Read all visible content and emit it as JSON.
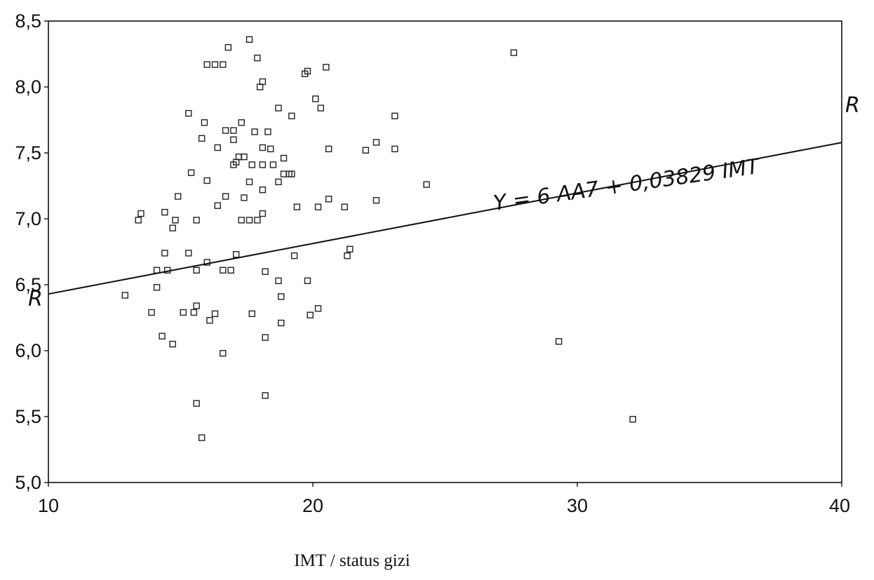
{
  "chart_data": {
    "type": "scatter",
    "title": "",
    "xlabel": "IMT / status gizi",
    "ylabel": "",
    "xlim": [
      10,
      40
    ],
    "ylim": [
      5.0,
      8.5
    ],
    "x_ticks": [
      "10",
      "20",
      "30",
      "40"
    ],
    "y_ticks": [
      "5,0",
      "5,5",
      "6,0",
      "6,5",
      "7,0",
      "7,5",
      "8,0",
      "8,5"
    ],
    "x_tick_values": [
      10,
      20,
      30,
      40
    ],
    "y_tick_values": [
      5.0,
      5.5,
      6.0,
      6.5,
      7.0,
      7.5,
      8.0,
      8.5
    ],
    "grid": false,
    "legend": "none",
    "regression_line": {
      "intercept": 6.0469,
      "slope": 0.03829,
      "x_range": [
        10,
        40
      ],
      "annotation": "Y = 6 AA7 + 0,03829 IMT",
      "end_labels": [
        "R",
        "R"
      ]
    },
    "points": [
      {
        "x": 16.0,
        "y": 8.17
      },
      {
        "x": 16.3,
        "y": 8.17
      },
      {
        "x": 16.6,
        "y": 8.17
      },
      {
        "x": 16.8,
        "y": 8.3
      },
      {
        "x": 17.6,
        "y": 8.36
      },
      {
        "x": 17.9,
        "y": 8.22
      },
      {
        "x": 18.0,
        "y": 8.0
      },
      {
        "x": 18.1,
        "y": 8.04
      },
      {
        "x": 19.7,
        "y": 8.1
      },
      {
        "x": 19.8,
        "y": 8.12
      },
      {
        "x": 20.5,
        "y": 8.15
      },
      {
        "x": 27.6,
        "y": 8.26
      },
      {
        "x": 20.1,
        "y": 7.91
      },
      {
        "x": 20.3,
        "y": 7.84
      },
      {
        "x": 18.7,
        "y": 7.84
      },
      {
        "x": 19.2,
        "y": 7.78
      },
      {
        "x": 15.3,
        "y": 7.8
      },
      {
        "x": 15.9,
        "y": 7.73
      },
      {
        "x": 17.3,
        "y": 7.73
      },
      {
        "x": 23.1,
        "y": 7.78
      },
      {
        "x": 16.7,
        "y": 7.67
      },
      {
        "x": 17.0,
        "y": 7.67
      },
      {
        "x": 17.8,
        "y": 7.66
      },
      {
        "x": 18.3,
        "y": 7.66
      },
      {
        "x": 15.8,
        "y": 7.61
      },
      {
        "x": 17.0,
        "y": 7.6
      },
      {
        "x": 16.4,
        "y": 7.54
      },
      {
        "x": 18.1,
        "y": 7.54
      },
      {
        "x": 18.4,
        "y": 7.53
      },
      {
        "x": 20.6,
        "y": 7.53
      },
      {
        "x": 22.0,
        "y": 7.52
      },
      {
        "x": 22.4,
        "y": 7.58
      },
      {
        "x": 23.1,
        "y": 7.53
      },
      {
        "x": 17.2,
        "y": 7.47
      },
      {
        "x": 17.4,
        "y": 7.47
      },
      {
        "x": 18.9,
        "y": 7.46
      },
      {
        "x": 17.0,
        "y": 7.41
      },
      {
        "x": 17.1,
        "y": 7.43
      },
      {
        "x": 17.7,
        "y": 7.41
      },
      {
        "x": 18.1,
        "y": 7.41
      },
      {
        "x": 18.5,
        "y": 7.41
      },
      {
        "x": 15.4,
        "y": 7.35
      },
      {
        "x": 18.9,
        "y": 7.34
      },
      {
        "x": 19.1,
        "y": 7.34
      },
      {
        "x": 19.2,
        "y": 7.34
      },
      {
        "x": 16.0,
        "y": 7.29
      },
      {
        "x": 17.6,
        "y": 7.28
      },
      {
        "x": 18.7,
        "y": 7.28
      },
      {
        "x": 18.1,
        "y": 7.22
      },
      {
        "x": 24.3,
        "y": 7.26
      },
      {
        "x": 14.9,
        "y": 7.17
      },
      {
        "x": 16.7,
        "y": 7.17
      },
      {
        "x": 17.4,
        "y": 7.16
      },
      {
        "x": 20.6,
        "y": 7.15
      },
      {
        "x": 22.4,
        "y": 7.14
      },
      {
        "x": 16.4,
        "y": 7.1
      },
      {
        "x": 19.4,
        "y": 7.09
      },
      {
        "x": 20.2,
        "y": 7.09
      },
      {
        "x": 21.2,
        "y": 7.09
      },
      {
        "x": 13.4,
        "y": 6.99
      },
      {
        "x": 13.5,
        "y": 7.04
      },
      {
        "x": 14.4,
        "y": 7.05
      },
      {
        "x": 14.8,
        "y": 6.99
      },
      {
        "x": 15.6,
        "y": 6.99
      },
      {
        "x": 17.3,
        "y": 6.99
      },
      {
        "x": 17.6,
        "y": 6.99
      },
      {
        "x": 17.9,
        "y": 6.99
      },
      {
        "x": 18.1,
        "y": 7.04
      },
      {
        "x": 14.7,
        "y": 6.93
      },
      {
        "x": 14.4,
        "y": 6.74
      },
      {
        "x": 15.3,
        "y": 6.74
      },
      {
        "x": 17.1,
        "y": 6.73
      },
      {
        "x": 19.3,
        "y": 6.72
      },
      {
        "x": 21.3,
        "y": 6.72
      },
      {
        "x": 21.4,
        "y": 6.77
      },
      {
        "x": 16.0,
        "y": 6.67
      },
      {
        "x": 14.1,
        "y": 6.61
      },
      {
        "x": 14.5,
        "y": 6.61
      },
      {
        "x": 15.6,
        "y": 6.61
      },
      {
        "x": 16.6,
        "y": 6.61
      },
      {
        "x": 16.9,
        "y": 6.61
      },
      {
        "x": 18.2,
        "y": 6.6
      },
      {
        "x": 18.7,
        "y": 6.53
      },
      {
        "x": 19.8,
        "y": 6.53
      },
      {
        "x": 14.1,
        "y": 6.48
      },
      {
        "x": 12.9,
        "y": 6.42
      },
      {
        "x": 18.8,
        "y": 6.41
      },
      {
        "x": 13.9,
        "y": 6.29
      },
      {
        "x": 15.1,
        "y": 6.29
      },
      {
        "x": 15.5,
        "y": 6.29
      },
      {
        "x": 15.6,
        "y": 6.34
      },
      {
        "x": 16.3,
        "y": 6.28
      },
      {
        "x": 16.1,
        "y": 6.23
      },
      {
        "x": 17.7,
        "y": 6.28
      },
      {
        "x": 19.9,
        "y": 6.27
      },
      {
        "x": 20.2,
        "y": 6.32
      },
      {
        "x": 18.8,
        "y": 6.21
      },
      {
        "x": 14.3,
        "y": 6.11
      },
      {
        "x": 14.7,
        "y": 6.05
      },
      {
        "x": 18.2,
        "y": 6.1
      },
      {
        "x": 16.6,
        "y": 5.98
      },
      {
        "x": 29.3,
        "y": 6.07
      },
      {
        "x": 15.6,
        "y": 5.6
      },
      {
        "x": 18.2,
        "y": 5.66
      },
      {
        "x": 15.8,
        "y": 5.34
      },
      {
        "x": 32.1,
        "y": 5.48
      }
    ]
  }
}
